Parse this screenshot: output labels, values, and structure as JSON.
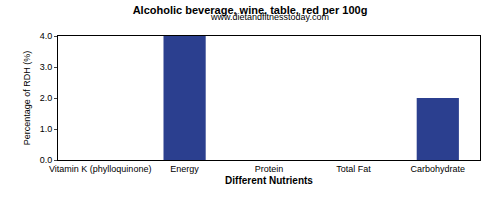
{
  "chart_data": {
    "type": "bar",
    "title": "Alcoholic beverage, wine, table, red per 100g",
    "subtitle": "www.dietandfitnesstoday.com",
    "x_label": "Different Nutrients",
    "y_label": "Percentage of RDH (%)",
    "categories": [
      "Vitamin K (phylloquinone)",
      "Energy",
      "Protein",
      "Total Fat",
      "Carbohydrate"
    ],
    "values": [
      0,
      4,
      0,
      0,
      2
    ],
    "color": "#2b3f8f",
    "ylim": [
      0,
      4
    ],
    "yticks": [
      {
        "value": 0,
        "label": "0.0"
      },
      {
        "value": 1,
        "label": "1.0"
      },
      {
        "value": 2,
        "label": "2.0"
      },
      {
        "value": 3,
        "label": "3.0"
      },
      {
        "value": 4,
        "label": "4.0"
      }
    ],
    "grid": false
  }
}
